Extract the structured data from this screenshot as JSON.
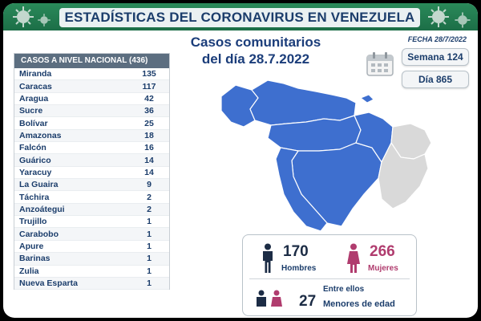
{
  "header": {
    "title": "ESTADÍSTICAS DEL CORONAVIRUS EN VENEZUELA",
    "subtitle_line1": "Casos comunitarios",
    "subtitle_line2": "del día 28.7.2022",
    "date": "FECHA 28/7/2022"
  },
  "week": {
    "label": "Semana 124"
  },
  "day": {
    "label": "Día 865"
  },
  "table": {
    "header": "CASOS A NIVEL NACIONAL (436)",
    "rows": [
      {
        "name": "Miranda",
        "value": "135"
      },
      {
        "name": "Caracas",
        "value": "117"
      },
      {
        "name": "Aragua",
        "value": "42"
      },
      {
        "name": "Sucre",
        "value": "36"
      },
      {
        "name": "Bolívar",
        "value": "25"
      },
      {
        "name": "Amazonas",
        "value": "18"
      },
      {
        "name": "Falcón",
        "value": "16"
      },
      {
        "name": "Guárico",
        "value": "14"
      },
      {
        "name": "Yaracuy",
        "value": "14"
      },
      {
        "name": "La Guaira",
        "value": "9"
      },
      {
        "name": "Táchira",
        "value": "2"
      },
      {
        "name": "Anzoátegui",
        "value": "2"
      },
      {
        "name": "Trujillo",
        "value": "1"
      },
      {
        "name": "Carabobo",
        "value": "1"
      },
      {
        "name": "Apure",
        "value": "1"
      },
      {
        "name": "Barinas",
        "value": "1"
      },
      {
        "name": "Zulia",
        "value": "1"
      },
      {
        "name": "Nueva Esparta",
        "value": "1"
      }
    ]
  },
  "stats": {
    "men_count": "170",
    "men_label": "Hombres",
    "women_count": "266",
    "women_label": "Mujeres",
    "minors_prefix": "Entre ellos",
    "minors_count": "27",
    "minors_label": "Menores de edad"
  },
  "colors": {
    "banner": "#1c6e47",
    "title_text": "#1b3d6b",
    "map_active": "#3e6fcf",
    "map_inactive": "#d9d9d9",
    "women": "#b03c6e"
  }
}
